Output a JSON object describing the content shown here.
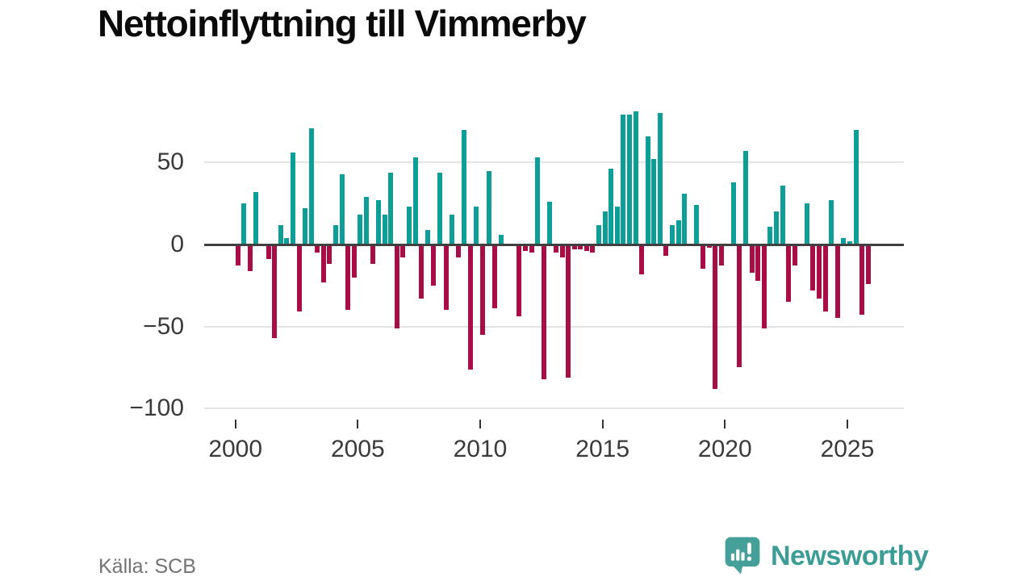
{
  "chart_data": {
    "type": "bar",
    "title": "Nettoinflyttning till Vimmerby",
    "source": "Källa: SCB",
    "x_unit": "quarter",
    "start_period": "2000-Q1",
    "end_period": "2025-Q4",
    "grid": "horizontal",
    "legend": "none",
    "ylim": [
      -110,
      90
    ],
    "yticks": [
      {
        "value": 50,
        "label": "50"
      },
      {
        "value": 0,
        "label": "0"
      },
      {
        "value": -50,
        "label": "−50"
      },
      {
        "value": -100,
        "label": "−100"
      }
    ],
    "xticks": [
      {
        "year": 2000,
        "label": "2000"
      },
      {
        "year": 2005,
        "label": "2005"
      },
      {
        "year": 2010,
        "label": "2010"
      },
      {
        "year": 2015,
        "label": "2015"
      },
      {
        "year": 2020,
        "label": "2020"
      },
      {
        "year": 2025,
        "label": "2025"
      }
    ],
    "colors": {
      "positive": "#0C9E97",
      "negative": "#A80D46",
      "zero_axis": "#404040",
      "gridline": "#e4e4e4",
      "axis_text": "#3a3a3a"
    },
    "data": [
      {
        "year": 2000,
        "q": [
          -13,
          25,
          -16,
          32
        ]
      },
      {
        "year": 2001,
        "q": [
          0,
          -9,
          -57,
          12
        ]
      },
      {
        "year": 2002,
        "q": [
          4,
          56,
          -41,
          22
        ]
      },
      {
        "year": 2003,
        "q": [
          71,
          -5,
          -23,
          -12
        ]
      },
      {
        "year": 2004,
        "q": [
          12,
          43,
          -40,
          -20
        ]
      },
      {
        "year": 2005,
        "q": [
          18,
          29,
          -12,
          27
        ]
      },
      {
        "year": 2006,
        "q": [
          18,
          44,
          -51,
          -8
        ]
      },
      {
        "year": 2007,
        "q": [
          23,
          53,
          -33,
          9
        ]
      },
      {
        "year": 2008,
        "q": [
          -25,
          44,
          -40,
          18
        ]
      },
      {
        "year": 2009,
        "q": [
          -8,
          70,
          -76,
          23
        ]
      },
      {
        "year": 2010,
        "q": [
          -55,
          45,
          -39,
          6
        ]
      },
      {
        "year": 2011,
        "q": [
          0,
          0,
          -44,
          -4
        ]
      },
      {
        "year": 2012,
        "q": [
          -5,
          53,
          -82,
          26
        ]
      },
      {
        "year": 2013,
        "q": [
          -5,
          -8,
          -81,
          -3
        ]
      },
      {
        "year": 2014,
        "q": [
          -3,
          -4,
          -5,
          12
        ]
      },
      {
        "year": 2015,
        "q": [
          20,
          46,
          23,
          79
        ]
      },
      {
        "year": 2016,
        "q": [
          79,
          81,
          -18,
          66
        ]
      },
      {
        "year": 2017,
        "q": [
          52,
          80,
          -7,
          12
        ]
      },
      {
        "year": 2018,
        "q": [
          15,
          31,
          0,
          24
        ]
      },
      {
        "year": 2019,
        "q": [
          -15,
          -2,
          -88,
          -13
        ]
      },
      {
        "year": 2020,
        "q": [
          0,
          38,
          -75,
          57
        ]
      },
      {
        "year": 2021,
        "q": [
          -17,
          -22,
          -51,
          11
        ]
      },
      {
        "year": 2022,
        "q": [
          20,
          36,
          -35,
          -13
        ]
      },
      {
        "year": 2023,
        "q": [
          0,
          25,
          -28,
          -33
        ]
      },
      {
        "year": 2024,
        "q": [
          -41,
          27,
          -45,
          4
        ]
      },
      {
        "year": 2025,
        "q": [
          2,
          70,
          -43,
          -24
        ]
      }
    ]
  },
  "branding": {
    "name": "Newsworthy",
    "color": "#3B9D95",
    "icon_color": "#45A09A"
  }
}
